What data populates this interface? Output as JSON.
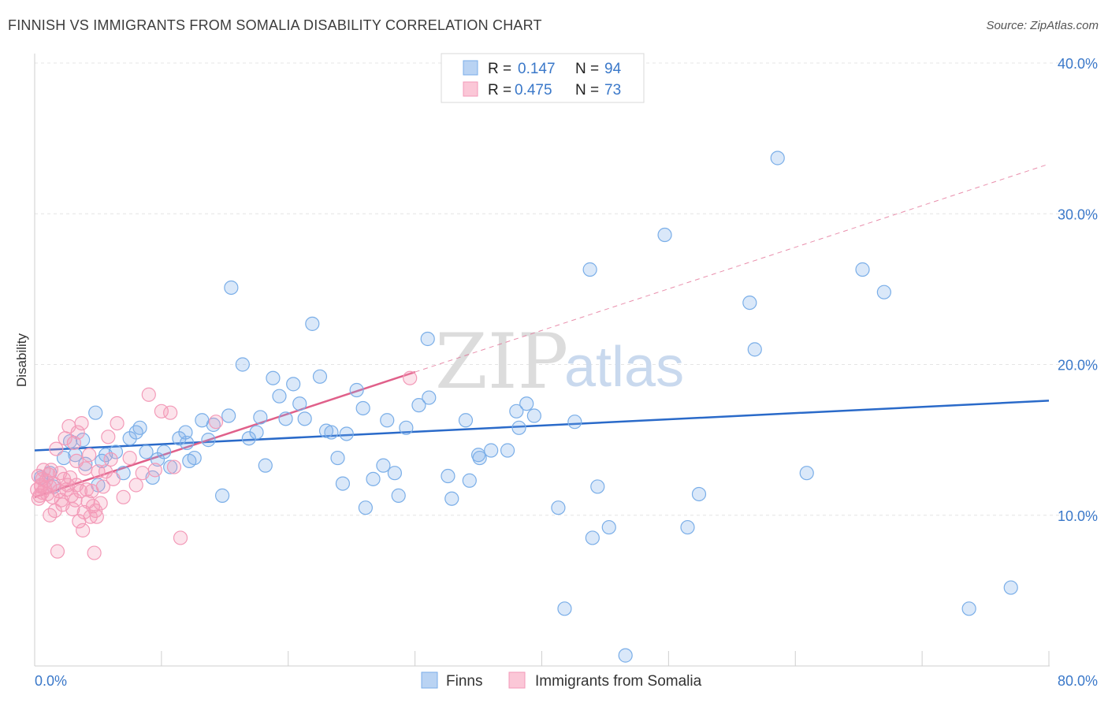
{
  "title": "FINNISH VS IMMIGRANTS FROM SOMALIA DISABILITY CORRELATION CHART",
  "source": "Source: ZipAtlas.com",
  "watermark": {
    "zip": "ZIP",
    "atlas": "atlas"
  },
  "legend": {
    "r_label": "R =",
    "n_label": "N =",
    "rows": [
      {
        "series": "Finns",
        "r": "0.147",
        "n": "94",
        "color": "#7aaee8"
      },
      {
        "series": "Immigrants from Somalia",
        "r": "0.475",
        "n": "73",
        "color": "#f39ab8"
      }
    ]
  },
  "bottom_legend": [
    "Finns",
    "Immigrants from Somalia"
  ],
  "chart_data": {
    "type": "scatter",
    "title": "FINNISH VS IMMIGRANTS FROM SOMALIA DISABILITY CORRELATION CHART",
    "xlabel": "",
    "ylabel": "Disability",
    "xlim": [
      0,
      80
    ],
    "ylim": [
      0,
      40
    ],
    "x_tick_labels": [
      "0.0%",
      "80.0%"
    ],
    "y_ticks": [
      10,
      20,
      30,
      40
    ],
    "y_tick_labels": [
      "10.0%",
      "20.0%",
      "30.0%",
      "40.0%"
    ],
    "grid": true,
    "legend_position": "top-center",
    "series": [
      {
        "name": "Finns",
        "color": "#7aaee8",
        "line_color": "#2a6ac9",
        "trend": {
          "x0": 0,
          "y0": 14.3,
          "x1": 80,
          "y1": 17.6
        },
        "points": [
          [
            0.5,
            12.5
          ],
          [
            1.2,
            12.8
          ],
          [
            1.5,
            11.9
          ],
          [
            2.3,
            13.8
          ],
          [
            2.8,
            14.9
          ],
          [
            3.2,
            14.0
          ],
          [
            3.8,
            15.0
          ],
          [
            4.0,
            13.4
          ],
          [
            4.8,
            16.8
          ],
          [
            5.3,
            13.6
          ],
          [
            5.6,
            14.0
          ],
          [
            6.4,
            14.2
          ],
          [
            7.0,
            12.8
          ],
          [
            7.5,
            15.1
          ],
          [
            8.0,
            15.5
          ],
          [
            8.3,
            15.8
          ],
          [
            8.8,
            14.2
          ],
          [
            9.3,
            12.5
          ],
          [
            9.7,
            13.7
          ],
          [
            10.2,
            14.2
          ],
          [
            10.7,
            13.2
          ],
          [
            11.4,
            15.1
          ],
          [
            11.9,
            15.5
          ],
          [
            12.2,
            13.6
          ],
          [
            12.6,
            13.8
          ],
          [
            13.2,
            16.3
          ],
          [
            13.7,
            15.0
          ],
          [
            14.1,
            16.0
          ],
          [
            14.8,
            11.3
          ],
          [
            15.3,
            16.6
          ],
          [
            15.5,
            25.1
          ],
          [
            16.4,
            20.0
          ],
          [
            16.9,
            15.1
          ],
          [
            17.5,
            15.5
          ],
          [
            17.8,
            16.5
          ],
          [
            18.2,
            13.3
          ],
          [
            18.8,
            19.1
          ],
          [
            19.3,
            17.9
          ],
          [
            19.8,
            16.4
          ],
          [
            20.4,
            18.7
          ],
          [
            20.9,
            17.4
          ],
          [
            21.3,
            16.4
          ],
          [
            21.9,
            22.7
          ],
          [
            22.5,
            19.2
          ],
          [
            23.0,
            15.6
          ],
          [
            23.4,
            15.5
          ],
          [
            23.9,
            13.8
          ],
          [
            24.3,
            12.1
          ],
          [
            24.6,
            15.4
          ],
          [
            25.4,
            18.3
          ],
          [
            25.9,
            17.1
          ],
          [
            26.1,
            10.5
          ],
          [
            26.7,
            12.4
          ],
          [
            27.5,
            13.3
          ],
          [
            27.8,
            16.3
          ],
          [
            28.4,
            12.8
          ],
          [
            28.7,
            11.3
          ],
          [
            29.3,
            15.8
          ],
          [
            30.3,
            17.3
          ],
          [
            31.0,
            21.7
          ],
          [
            31.1,
            17.8
          ],
          [
            32.6,
            12.6
          ],
          [
            32.9,
            11.1
          ],
          [
            34.0,
            16.3
          ],
          [
            34.3,
            12.3
          ],
          [
            35.0,
            14.0
          ],
          [
            35.1,
            13.8
          ],
          [
            36.0,
            14.3
          ],
          [
            37.3,
            14.3
          ],
          [
            38.0,
            16.9
          ],
          [
            38.2,
            15.8
          ],
          [
            38.8,
            17.4
          ],
          [
            39.4,
            16.6
          ],
          [
            41.3,
            10.5
          ],
          [
            41.8,
            3.8
          ],
          [
            42.6,
            16.2
          ],
          [
            43.8,
            26.3
          ],
          [
            44.0,
            8.5
          ],
          [
            44.4,
            11.9
          ],
          [
            45.3,
            9.2
          ],
          [
            46.6,
            0.7
          ],
          [
            49.7,
            28.6
          ],
          [
            51.5,
            9.2
          ],
          [
            52.4,
            11.4
          ],
          [
            56.4,
            24.1
          ],
          [
            56.8,
            21.0
          ],
          [
            58.6,
            33.7
          ],
          [
            60.9,
            12.8
          ],
          [
            65.3,
            26.3
          ],
          [
            67.0,
            24.8
          ],
          [
            73.7,
            3.8
          ],
          [
            77.0,
            5.2
          ],
          [
            5.0,
            12.0
          ],
          [
            12.0,
            14.8
          ]
        ]
      },
      {
        "name": "Immigrants from Somalia",
        "color": "#f39ab8",
        "line_color": "#e0608a",
        "trend": {
          "x0": 0,
          "y0": 11.2,
          "x1": 30,
          "y1": 19.5
        },
        "trend_extension": {
          "x0": 30,
          "y0": 19.5,
          "x1": 80,
          "y1": 33.3
        },
        "points": [
          [
            0.2,
            11.7
          ],
          [
            0.3,
            12.6
          ],
          [
            0.4,
            11.3
          ],
          [
            0.5,
            12.0
          ],
          [
            0.6,
            11.5
          ],
          [
            0.7,
            13.0
          ],
          [
            0.8,
            11.8
          ],
          [
            0.9,
            12.3
          ],
          [
            1.0,
            11.4
          ],
          [
            1.1,
            12.7
          ],
          [
            1.2,
            11.9
          ],
          [
            1.3,
            13.0
          ],
          [
            1.4,
            11.2
          ],
          [
            1.5,
            12.1
          ],
          [
            1.6,
            10.3
          ],
          [
            1.7,
            14.4
          ],
          [
            1.8,
            7.6
          ],
          [
            1.9,
            11.6
          ],
          [
            2.0,
            12.8
          ],
          [
            2.1,
            11.0
          ],
          [
            2.2,
            10.7
          ],
          [
            2.3,
            12.4
          ],
          [
            2.4,
            15.1
          ],
          [
            2.5,
            11.7
          ],
          [
            2.6,
            12.0
          ],
          [
            2.7,
            15.9
          ],
          [
            2.8,
            12.5
          ],
          [
            2.9,
            11.3
          ],
          [
            3.0,
            10.4
          ],
          [
            3.1,
            14.8
          ],
          [
            3.2,
            11.0
          ],
          [
            3.3,
            12.0
          ],
          [
            3.4,
            15.5
          ],
          [
            3.5,
            9.6
          ],
          [
            3.6,
            11.6
          ],
          [
            3.7,
            16.1
          ],
          [
            3.8,
            9.0
          ],
          [
            3.9,
            10.2
          ],
          [
            4.0,
            13.1
          ],
          [
            4.1,
            11.7
          ],
          [
            4.2,
            10.9
          ],
          [
            4.3,
            14.0
          ],
          [
            4.4,
            9.9
          ],
          [
            4.5,
            11.6
          ],
          [
            4.6,
            10.6
          ],
          [
            4.7,
            7.5
          ],
          [
            4.8,
            10.3
          ],
          [
            4.9,
            9.9
          ],
          [
            5.0,
            12.9
          ],
          [
            5.2,
            10.8
          ],
          [
            5.4,
            11.9
          ],
          [
            5.6,
            12.9
          ],
          [
            5.8,
            15.2
          ],
          [
            6.0,
            13.7
          ],
          [
            6.2,
            12.4
          ],
          [
            6.5,
            16.1
          ],
          [
            7.0,
            11.2
          ],
          [
            7.5,
            13.8
          ],
          [
            8.0,
            12.0
          ],
          [
            8.5,
            12.8
          ],
          [
            9.0,
            18.0
          ],
          [
            9.5,
            13.0
          ],
          [
            10.0,
            16.9
          ],
          [
            10.7,
            16.8
          ],
          [
            11.0,
            13.2
          ],
          [
            11.5,
            8.5
          ],
          [
            14.3,
            16.2
          ],
          [
            29.6,
            19.1
          ],
          [
            0.3,
            11.1
          ],
          [
            0.5,
            11.9
          ],
          [
            0.6,
            12.4
          ],
          [
            3.3,
            13.6
          ],
          [
            1.2,
            10.0
          ]
        ]
      }
    ]
  }
}
